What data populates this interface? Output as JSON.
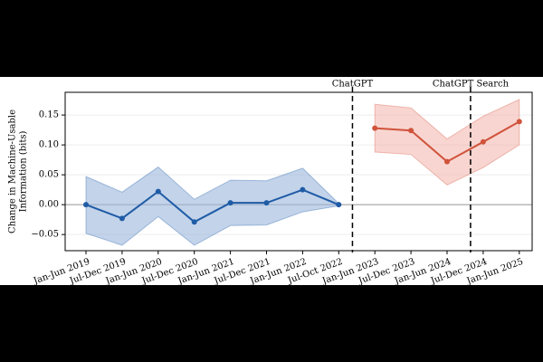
{
  "chart_data": {
    "type": "line",
    "ylabel": [
      "Change in Machine-Usable",
      "Information (bits)"
    ],
    "categories": [
      "Jan-Jun 2019",
      "Jul-Dec 2019",
      "Jan-Jun 2020",
      "Jul-Dec 2020",
      "Jan-Jun 2021",
      "Jul-Dec 2021",
      "Jan-Jun 2022",
      "Jul-Oct 2022",
      "Jan-Jun 2023",
      "Jul-Dec 2023",
      "Jan-Jun 2024",
      "Jul-Dec 2024",
      "Jan-Jun 2025"
    ],
    "series": [
      {
        "color": "#1f5ba6",
        "band_color": "#9ab6dc",
        "values": [
          0,
          -0.023,
          0.022,
          -0.029,
          0.003,
          0.003,
          0.025,
          0,
          null,
          null,
          null,
          null,
          null
        ],
        "lower": [
          -0.048,
          -0.068,
          -0.02,
          -0.068,
          -0.035,
          -0.034,
          -0.012,
          -0.002,
          null,
          null,
          null,
          null,
          null
        ],
        "upper": [
          0.047,
          0.021,
          0.063,
          0.009,
          0.041,
          0.04,
          0.061,
          0.002,
          null,
          null,
          null,
          null,
          null
        ]
      },
      {
        "color": "#d0533b",
        "band_color": "#f3b9b0",
        "values": [
          null,
          null,
          null,
          null,
          null,
          null,
          null,
          null,
          0.128,
          0.124,
          0.072,
          0.105,
          0.139
        ],
        "lower": [
          null,
          null,
          null,
          null,
          null,
          null,
          null,
          null,
          0.088,
          0.084,
          0.033,
          0.062,
          0.1
        ],
        "upper": [
          null,
          null,
          null,
          null,
          null,
          null,
          null,
          null,
          0.168,
          0.162,
          0.11,
          0.148,
          0.176
        ]
      }
    ],
    "events": [
      {
        "label": "ChatGPT",
        "position": 7.38
      },
      {
        "label": "ChatGPT Search",
        "position": 10.65
      }
    ],
    "ylim": [
      -0.077,
      0.188
    ],
    "yticks": [
      {
        "value": -0.05,
        "label": "−0.05"
      },
      {
        "value": 0,
        "label": "0.00"
      },
      {
        "value": 0.05,
        "label": "0.05"
      },
      {
        "value": 0.1,
        "label": "0.10"
      },
      {
        "value": 0.15,
        "label": "0.15"
      }
    ],
    "grid": true
  }
}
